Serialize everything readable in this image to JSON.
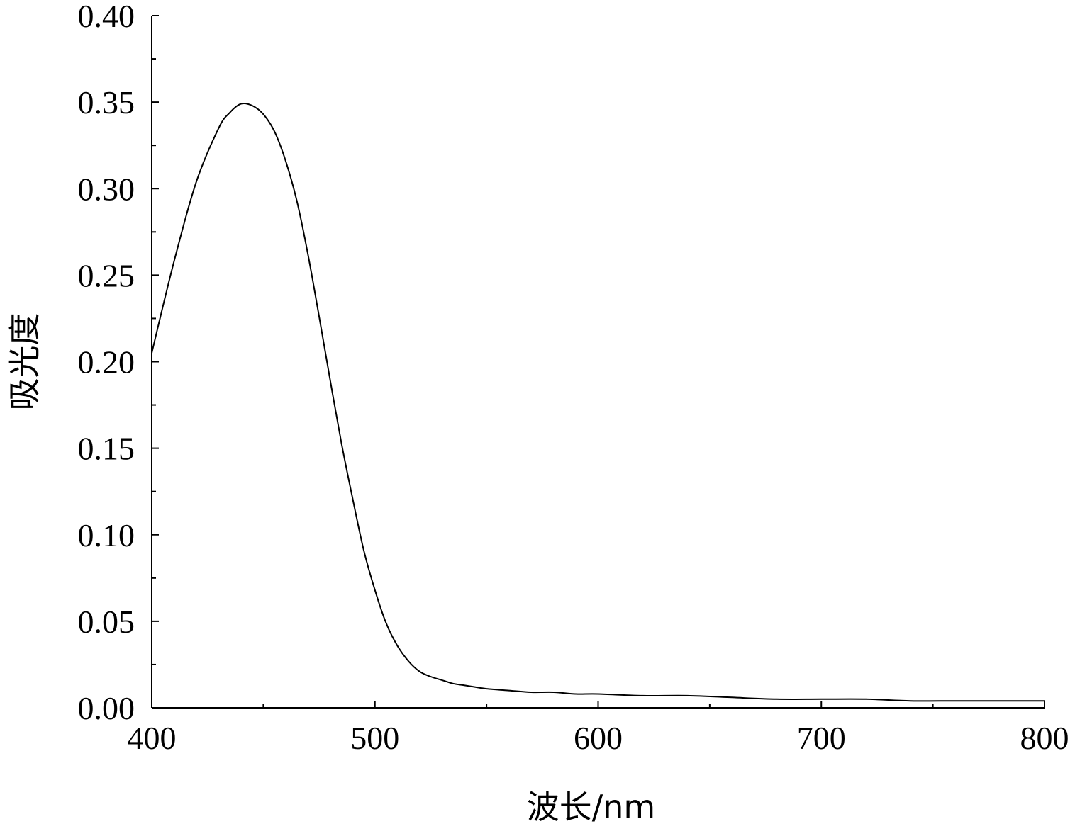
{
  "chart_data": {
    "type": "line",
    "xlabel": "波长/nm",
    "ylabel": "吸光度",
    "xlim": [
      400,
      800
    ],
    "ylim": [
      0.0,
      0.4
    ],
    "x_ticks": [
      "400",
      "500",
      "600",
      "700",
      "800"
    ],
    "y_ticks": [
      "0.00",
      "0.05",
      "0.10",
      "0.15",
      "0.20",
      "0.25",
      "0.30",
      "0.35",
      "0.40"
    ],
    "x_minor_step": 50,
    "y_minor_step": 0.025,
    "grid": false,
    "line_color": "#000000",
    "series": [
      {
        "x": [
          400,
          410,
          420,
          430,
          435,
          440,
          445,
          450,
          455,
          460,
          465,
          470,
          475,
          480,
          485,
          490,
          495,
          500,
          505,
          510,
          515,
          520,
          525,
          530,
          535,
          540,
          545,
          550,
          560,
          570,
          580,
          590,
          600,
          620,
          640,
          660,
          680,
          700,
          720,
          740,
          760,
          780,
          800
        ],
        "y": [
          0.205,
          0.258,
          0.304,
          0.335,
          0.344,
          0.349,
          0.348,
          0.343,
          0.333,
          0.316,
          0.293,
          0.262,
          0.226,
          0.189,
          0.153,
          0.121,
          0.091,
          0.068,
          0.049,
          0.036,
          0.027,
          0.021,
          0.018,
          0.016,
          0.014,
          0.013,
          0.012,
          0.011,
          0.01,
          0.009,
          0.009,
          0.008,
          0.008,
          0.007,
          0.007,
          0.006,
          0.005,
          0.005,
          0.005,
          0.004,
          0.004,
          0.004,
          0.004
        ]
      }
    ]
  }
}
